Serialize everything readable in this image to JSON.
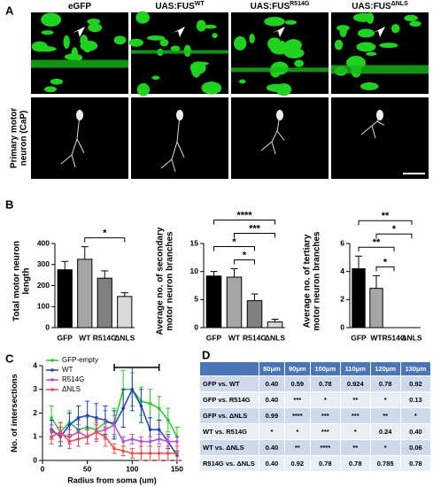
{
  "panel_labels": [
    "A",
    "B",
    "C",
    "D"
  ],
  "images": {
    "column_labels": [
      {
        "text": "eGFP"
      },
      {
        "text": "UAS:FUS",
        "superscript": "WT"
      },
      {
        "text": "UAS:FUS",
        "superscript": "R514G"
      },
      {
        "text": "UAS:FUS",
        "superscript": "ΔNLS"
      }
    ],
    "row_label": "Primary motor neuron (CaP)"
  },
  "chart_data": [
    {
      "type": "bar",
      "ylabel": "Total motor neuron length",
      "categories": [
        "GFP",
        "WT",
        "R514G",
        "ΔNLS"
      ],
      "values": [
        275,
        325,
        235,
        148
      ],
      "errors": [
        40,
        60,
        35,
        18
      ],
      "colors": [
        "#000000",
        "#a6a6a6",
        "#808080",
        "#d9d9d9"
      ],
      "ylim": [
        0,
        400
      ],
      "yticks": [
        0,
        100,
        200,
        300,
        400
      ],
      "significance": [
        {
          "text": "*",
          "between": [
            "WT",
            "ΔNLS"
          ]
        }
      ]
    },
    {
      "type": "bar",
      "ylabel": "Average no. of secondary motor neuron branches",
      "categories": [
        "GFP",
        "WT",
        "R514G",
        "ΔNLS"
      ],
      "values": [
        9.2,
        9.0,
        4.8,
        1.0
      ],
      "errors": [
        0.8,
        1.5,
        1.2,
        0.5
      ],
      "colors": [
        "#000000",
        "#a6a6a6",
        "#808080",
        "#d9d9d9"
      ],
      "ylim": [
        0,
        15
      ],
      "yticks": [
        0,
        5,
        10,
        15
      ],
      "significance": [
        {
          "text": "*",
          "between": [
            "WT",
            "R514G"
          ]
        },
        {
          "text": "*",
          "between": [
            "GFP",
            "R514G"
          ]
        },
        {
          "text": "***",
          "between": [
            "WT",
            "ΔNLS"
          ]
        },
        {
          "text": "****",
          "between": [
            "GFP",
            "ΔNLS"
          ]
        }
      ]
    },
    {
      "type": "bar",
      "ylabel": "Average no. of tertiary motor neuron branches",
      "categories": [
        "GFP",
        "WT",
        "R514G",
        "ΔNLS"
      ],
      "values": [
        4.2,
        2.8,
        0,
        0
      ],
      "errors": [
        0.9,
        0.9,
        0,
        0
      ],
      "colors": [
        "#000000",
        "#a6a6a6",
        "#808080",
        "#d9d9d9"
      ],
      "ylim": [
        0,
        6
      ],
      "yticks": [
        0,
        2,
        4,
        6
      ],
      "significance": [
        {
          "text": "*",
          "between": [
            "WT",
            "R514G"
          ]
        },
        {
          "text": "**",
          "between": [
            "GFP",
            "R514G"
          ]
        },
        {
          "text": "*",
          "between": [
            "WT",
            "ΔNLS"
          ]
        },
        {
          "text": "**",
          "between": [
            "GFP",
            "ΔNLS"
          ]
        }
      ]
    },
    {
      "type": "line",
      "xlabel": "Radius from soma (um)",
      "ylabel": "No. of intersections",
      "x": [
        10,
        20,
        30,
        40,
        50,
        60,
        70,
        80,
        90,
        100,
        110,
        120,
        130,
        140,
        150
      ],
      "series": [
        {
          "name": "GFP-empty",
          "color": "#22cc22",
          "values": [
            1.8,
            1.2,
            1.6,
            1.3,
            1.4,
            1.3,
            1.6,
            1.6,
            3.0,
            3.0,
            2.5,
            2.4,
            2.2,
            1.7,
            1.0
          ],
          "errors": [
            0.5,
            0.4,
            0.5,
            0.4,
            0.4,
            0.4,
            0.5,
            0.6,
            0.8,
            0.7,
            0.6,
            0.6,
            0.5,
            0.5,
            0.4
          ]
        },
        {
          "name": "WT",
          "color": "#1f3fbf",
          "values": [
            1.3,
            1.0,
            1.5,
            1.8,
            1.9,
            1.8,
            1.7,
            1.5,
            2.2,
            3.0,
            2.3,
            1.3,
            1.3,
            0.8,
            0.2
          ],
          "errors": [
            0.4,
            0.4,
            0.5,
            0.5,
            0.6,
            0.6,
            0.6,
            0.6,
            0.8,
            0.9,
            0.7,
            0.5,
            0.4,
            0.3,
            0.2
          ]
        },
        {
          "name": "R514G",
          "color": "#b04fd8",
          "values": [
            1.2,
            1.1,
            1.0,
            1.2,
            1.0,
            1.2,
            1.3,
            1.5,
            0.8,
            0.9,
            0.8,
            0.8,
            0.9,
            0.8,
            0.8
          ],
          "errors": [
            0.3,
            0.3,
            0.3,
            0.3,
            0.3,
            0.3,
            0.4,
            0.4,
            0.2,
            0.2,
            0.2,
            0.2,
            0.2,
            0.2,
            0.2
          ]
        },
        {
          "name": "ΔNLS",
          "color": "#f04848",
          "values": [
            1.0,
            1.2,
            0.8,
            0.9,
            1.0,
            1.2,
            1.0,
            0.5,
            0.4,
            0.3,
            0.3,
            0.3,
            0.3,
            0.3,
            0.3
          ],
          "errors": [
            0.3,
            0.4,
            0.3,
            0.3,
            0.3,
            0.4,
            0.4,
            0.2,
            0.2,
            0.2,
            0.3,
            0.3,
            0.3,
            0.3,
            0.3
          ]
        }
      ],
      "xlim": [
        0,
        155
      ],
      "ylim": [
        0,
        4
      ],
      "xticks": [
        0,
        50,
        100,
        150
      ],
      "yticks": [
        0,
        1,
        2,
        3,
        4
      ],
      "legend": "upper left",
      "significance_range": [
        80,
        130
      ]
    }
  ],
  "table": {
    "columns": [
      "80μm",
      "90μm",
      "100μm",
      "110μm",
      "120μm",
      "130μm"
    ],
    "rows": [
      {
        "label": "GFP vs. WT",
        "cells": [
          "0.40",
          "0.59",
          "0.78",
          "0.924",
          "0.78",
          "0.92"
        ]
      },
      {
        "label": "GFP vs. R514G",
        "cells": [
          "0.40",
          "***",
          "*",
          "**",
          "*",
          "0.13"
        ]
      },
      {
        "label": "GFP vs. ΔNLS",
        "cells": [
          "0.99",
          "****",
          "***",
          "***",
          "**",
          "*"
        ]
      },
      {
        "label": "WT vs. R514G",
        "cells": [
          "*",
          "*",
          "***",
          "*",
          "0.24",
          "0.40"
        ]
      },
      {
        "label": "WT vs. ΔNLS",
        "cells": [
          "0.40",
          "**",
          "****",
          "**",
          "*",
          "0.06"
        ]
      },
      {
        "label": "R514G vs. ΔNLS",
        "cells": [
          "0.40",
          "0.92",
          "0.78",
          "0.78",
          "0.785",
          "0.78"
        ]
      }
    ]
  }
}
